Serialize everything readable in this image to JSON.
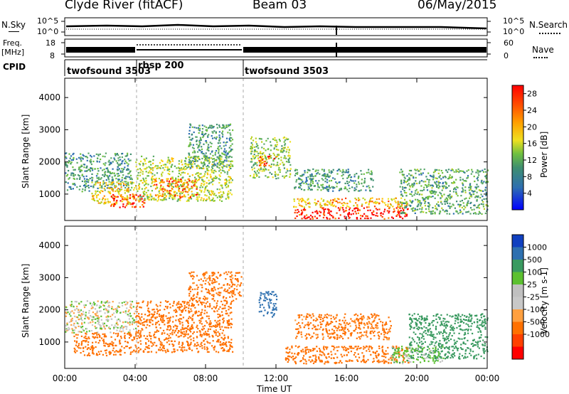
{
  "header": {
    "station": "Clyde River (fitACF)",
    "beam": "Beam 03",
    "date": "06/May/2015"
  },
  "strip": {
    "nsky_label": "N.Sky",
    "nsearch_label": "N.Search",
    "freq_label": "Freq.",
    "freq_unit": "[MHz]",
    "nave_label": "Nave",
    "cpid_label": "CPID",
    "nsky_ticks": [
      "10^5",
      "10^0"
    ],
    "nsearch_ticks": [
      "10^5",
      "10^0"
    ],
    "freq_ticks": [
      "18",
      "8"
    ],
    "nave_ticks": [
      "60",
      "0"
    ],
    "modes": [
      {
        "name": "twofsound 3503",
        "start": 0.0,
        "end": 4.0
      },
      {
        "name": "rbsp 200",
        "start": 4.0,
        "end": 10.0
      },
      {
        "name": "twofsound 3503",
        "start": 10.0,
        "end": 24.0
      }
    ]
  },
  "colors": {
    "power": [
      "#0000ff",
      "#1f4fd0",
      "#2e6fb0",
      "#3f8f6f",
      "#5aa86a",
      "#6fc040",
      "#b8d020",
      "#f0e020",
      "#ffc000",
      "#ff8a00",
      "#ff4000",
      "#ff0000"
    ],
    "velocity": [
      "#ff0000",
      "#ff4000",
      "#ff7000",
      "#ffa040",
      "#c8c8c8",
      "#c0c0c0",
      "#5cc030",
      "#3a9a60",
      "#2e70b0",
      "#1040c0"
    ]
  },
  "chart_data": [
    {
      "type": "heatmap",
      "title": "",
      "xlabel": "Time UT",
      "ylabel": "Slant Range [km]",
      "xlim": [
        0,
        24
      ],
      "ylim": [
        180,
        4600
      ],
      "x_ticks": [
        "00:00",
        "04:00",
        "08:00",
        "12:00",
        "16:00",
        "20:00",
        "00:00"
      ],
      "y_ticks": [
        "1000",
        "2000",
        "3000",
        "4000"
      ],
      "colorbar": {
        "label": "Power [dB]",
        "ticks": [
          "4",
          "8",
          "12",
          "16",
          "20",
          "24",
          "28"
        ],
        "range": [
          0,
          30
        ]
      },
      "regions": [
        {
          "t0": 0.0,
          "t1": 3.8,
          "r0": 1100,
          "r1": 2300,
          "value": 10
        },
        {
          "t0": 1.5,
          "t1": 4.0,
          "r0": 700,
          "r1": 1400,
          "value": 20
        },
        {
          "t0": 2.5,
          "t1": 4.5,
          "r0": 600,
          "r1": 1000,
          "value": 28
        },
        {
          "t0": 4.0,
          "t1": 9.5,
          "r0": 800,
          "r1": 2200,
          "value": 16
        },
        {
          "t0": 5.0,
          "t1": 7.5,
          "r0": 900,
          "r1": 1500,
          "value": 24
        },
        {
          "t0": 7.0,
          "t1": 9.5,
          "r0": 1800,
          "r1": 3200,
          "value": 10
        },
        {
          "t0": 10.5,
          "t1": 12.8,
          "r0": 1500,
          "r1": 2800,
          "value": 14
        },
        {
          "t0": 11.0,
          "t1": 12.0,
          "r0": 1900,
          "r1": 2200,
          "value": 26
        },
        {
          "t0": 13.0,
          "t1": 19.5,
          "r0": 250,
          "r1": 600,
          "value": 29
        },
        {
          "t0": 12.8,
          "t1": 19.5,
          "r0": 600,
          "r1": 900,
          "value": 21
        },
        {
          "t0": 13.0,
          "t1": 17.5,
          "r0": 1100,
          "r1": 1800,
          "value": 10
        },
        {
          "t0": 19.0,
          "t1": 24.0,
          "r0": 400,
          "r1": 1800,
          "value": 11
        }
      ]
    },
    {
      "type": "heatmap",
      "title": "",
      "xlabel": "Time UT",
      "ylabel": "Slant Range [km]",
      "xlim": [
        0,
        24
      ],
      "ylim": [
        180,
        4600
      ],
      "x_ticks": [
        "00:00",
        "04:00",
        "08:00",
        "12:00",
        "16:00",
        "20:00",
        "00:00"
      ],
      "y_ticks": [
        "1000",
        "2000",
        "3000",
        "4000"
      ],
      "colorbar": {
        "label": "Velocity [m s-1]",
        "ticks": [
          "1000",
          "500",
          "100",
          "25",
          "-25",
          "-100",
          "-500",
          "-1000"
        ]
      },
      "regions": [
        {
          "t0": 0.0,
          "t1": 4.0,
          "r0": 1300,
          "r1": 2300,
          "value": 0
        },
        {
          "t0": 0.5,
          "t1": 4.0,
          "r0": 600,
          "r1": 1300,
          "value": -200
        },
        {
          "t0": 4.0,
          "t1": 9.5,
          "r0": 700,
          "r1": 2300,
          "value": -250
        },
        {
          "t0": 7.0,
          "t1": 10.0,
          "r0": 2300,
          "r1": 3200,
          "value": -150
        },
        {
          "t0": 11.0,
          "t1": 12.0,
          "r0": 1800,
          "r1": 2600,
          "value": 800
        },
        {
          "t0": 12.5,
          "t1": 19.5,
          "r0": 350,
          "r1": 900,
          "value": -300
        },
        {
          "t0": 13.0,
          "t1": 18.5,
          "r0": 1100,
          "r1": 1900,
          "value": -150
        },
        {
          "t0": 19.5,
          "t1": 24.0,
          "r0": 500,
          "r1": 1900,
          "value": 400
        },
        {
          "t0": 18.5,
          "t1": 21.5,
          "r0": 350,
          "r1": 900,
          "value": 60
        }
      ]
    }
  ]
}
